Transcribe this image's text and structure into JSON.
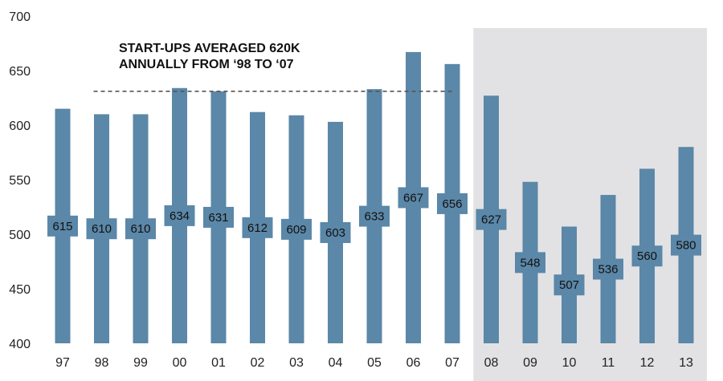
{
  "chart_data": {
    "type": "bar",
    "categories": [
      "97",
      "98",
      "99",
      "00",
      "01",
      "02",
      "03",
      "04",
      "05",
      "06",
      "07",
      "08",
      "09",
      "10",
      "11",
      "12",
      "13"
    ],
    "values": [
      615,
      610,
      610,
      634,
      631,
      612,
      609,
      603,
      633,
      667,
      656,
      627,
      548,
      507,
      536,
      560,
      580
    ],
    "yticks": [
      400,
      450,
      500,
      550,
      600,
      650,
      700
    ],
    "ylim": [
      400,
      700
    ],
    "grid": false,
    "legend": "none",
    "shaded_from_category": "08",
    "reference_line": {
      "value": 631,
      "style": "dashed",
      "from_category": "98",
      "to_category": "07"
    },
    "annotation": [
      "START-UPS AVERAGED 620K",
      "ANNUALLY FROM ‘98 TO ‘07"
    ],
    "colors": {
      "bar": "#5b87a8",
      "label_box": "#5b87a8",
      "shade": "#e2e2e4",
      "dashed_line": "#555555"
    }
  }
}
